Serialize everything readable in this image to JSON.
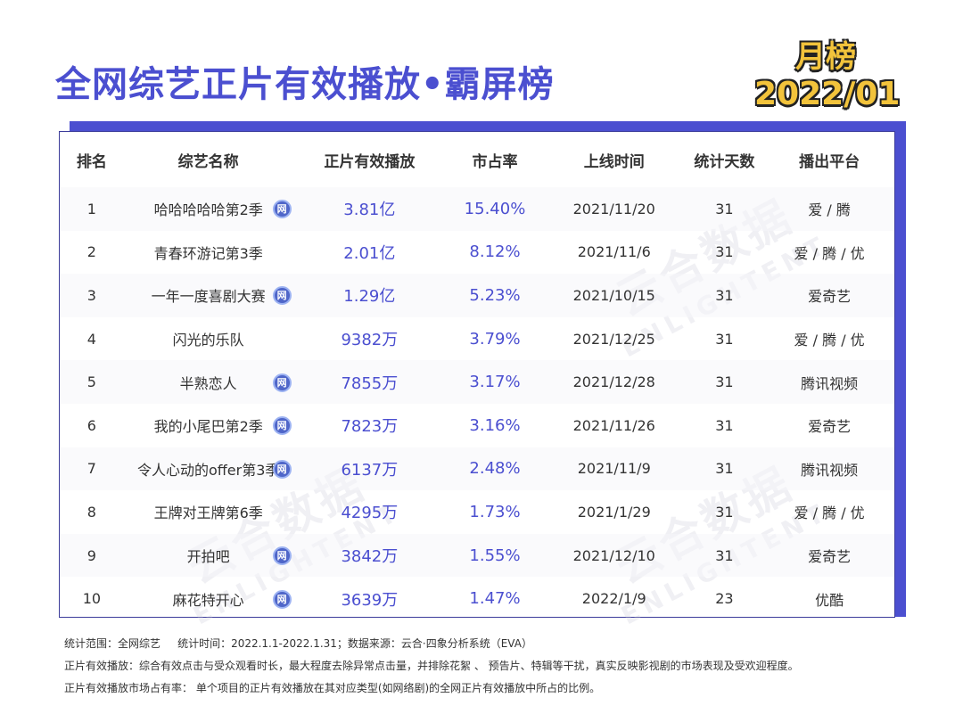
{
  "header": {
    "title": "全网综艺正片有效播放•霸屏榜",
    "badge_line1": "月榜",
    "badge_line2": "2022/01"
  },
  "watermark": {
    "cn": "云合数据",
    "en": "ENLIGHTENT"
  },
  "table": {
    "columns": [
      "排名",
      "综艺名称",
      "正片有效播放",
      "市占率",
      "上线时间",
      "统计天数",
      "播出平台"
    ],
    "net_icon_glyph": "网",
    "rows": [
      {
        "rank": "1",
        "name": "哈哈哈哈哈第2季",
        "net": true,
        "plays": "3.81亿",
        "share": "15.40%",
        "date": "2021/11/20",
        "days": "31",
        "platform": "爱 / 腾"
      },
      {
        "rank": "2",
        "name": "青春环游记第3季",
        "net": false,
        "plays": "2.01亿",
        "share": "8.12%",
        "date": "2021/11/6",
        "days": "31",
        "platform": "爱 / 腾 / 优"
      },
      {
        "rank": "3",
        "name": "一年一度喜剧大赛",
        "net": true,
        "plays": "1.29亿",
        "share": "5.23%",
        "date": "2021/10/15",
        "days": "31",
        "platform": "爱奇艺"
      },
      {
        "rank": "4",
        "name": "闪光的乐队",
        "net": false,
        "plays": "9382万",
        "share": "3.79%",
        "date": "2021/12/25",
        "days": "31",
        "platform": "爱 / 腾 / 优"
      },
      {
        "rank": "5",
        "name": "半熟恋人",
        "net": true,
        "plays": "7855万",
        "share": "3.17%",
        "date": "2021/12/28",
        "days": "31",
        "platform": "腾讯视频"
      },
      {
        "rank": "6",
        "name": "我的小尾巴第2季",
        "net": true,
        "plays": "7823万",
        "share": "3.16%",
        "date": "2021/11/26",
        "days": "31",
        "platform": "爱奇艺"
      },
      {
        "rank": "7",
        "name": "令人心动的offer第3季",
        "net": true,
        "plays": "6137万",
        "share": "2.48%",
        "date": "2021/11/9",
        "days": "31",
        "platform": "腾讯视频"
      },
      {
        "rank": "8",
        "name": "王牌对王牌第6季",
        "net": false,
        "plays": "4295万",
        "share": "1.73%",
        "date": "2021/1/29",
        "days": "31",
        "platform": "爱 / 腾 / 优"
      },
      {
        "rank": "9",
        "name": "开拍吧",
        "net": true,
        "plays": "3842万",
        "share": "1.55%",
        "date": "2021/12/10",
        "days": "31",
        "platform": "爱奇艺"
      },
      {
        "rank": "10",
        "name": "麻花特开心",
        "net": true,
        "plays": "3639万",
        "share": "1.47%",
        "date": "2022/1/9",
        "days": "23",
        "platform": "优酷"
      }
    ]
  },
  "footer": {
    "line1": "统计范围：全网综艺     统计时间：2022.1.1-2022.1.31；数据来源：云合·四象分析系统（EVA）",
    "line2": "正片有效播放：综合有效点击与受众观看时长，最大程度去除异常点击量，并排除花絮 、 预告片、特辑等干扰，真实反映影视剧的市场表现及受欢迎程度。",
    "line3": "正片有效播放市场占有率： 单个项目的正片有效播放在其对应类型(如网络剧)的全网正片有效播放中所占的比例。"
  }
}
